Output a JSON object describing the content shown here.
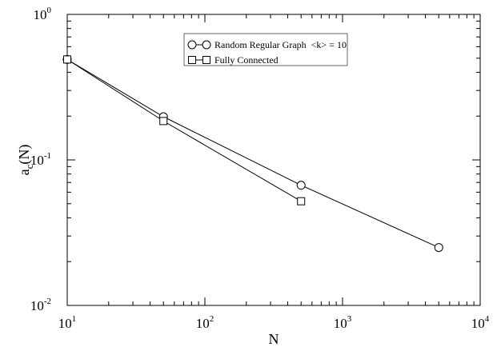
{
  "chart_data": {
    "type": "line",
    "xscale": "log",
    "yscale": "log",
    "xlim": [
      10,
      10000
    ],
    "ylim": [
      0.01,
      1
    ],
    "xlabel": "N",
    "ylabel_base": "a",
    "ylabel_sub": "c",
    "ylabel_rest": "(N)",
    "grid": false,
    "legend_position": "top-center",
    "x_ticks": [
      {
        "value": 10,
        "base": "10",
        "exp": "1"
      },
      {
        "value": 100,
        "base": "10",
        "exp": "2"
      },
      {
        "value": 1000,
        "base": "10",
        "exp": "3"
      },
      {
        "value": 10000,
        "base": "10",
        "exp": "4"
      }
    ],
    "y_ticks": [
      {
        "value": 0.01,
        "base": "10",
        "exp": "-2"
      },
      {
        "value": 0.1,
        "base": "10",
        "exp": "-1"
      },
      {
        "value": 1,
        "base": "10",
        "exp": "0"
      }
    ],
    "series": [
      {
        "name": "Random Regular Graph  <k> = 10",
        "marker": "circle",
        "color": "#000000",
        "x": [
          10,
          50,
          500,
          5000
        ],
        "y": [
          0.49,
          0.198,
          0.067,
          0.025
        ]
      },
      {
        "name": "Fully Connected",
        "marker": "square",
        "color": "#000000",
        "x": [
          10,
          50,
          500
        ],
        "y": [
          0.49,
          0.185,
          0.052
        ]
      }
    ]
  }
}
